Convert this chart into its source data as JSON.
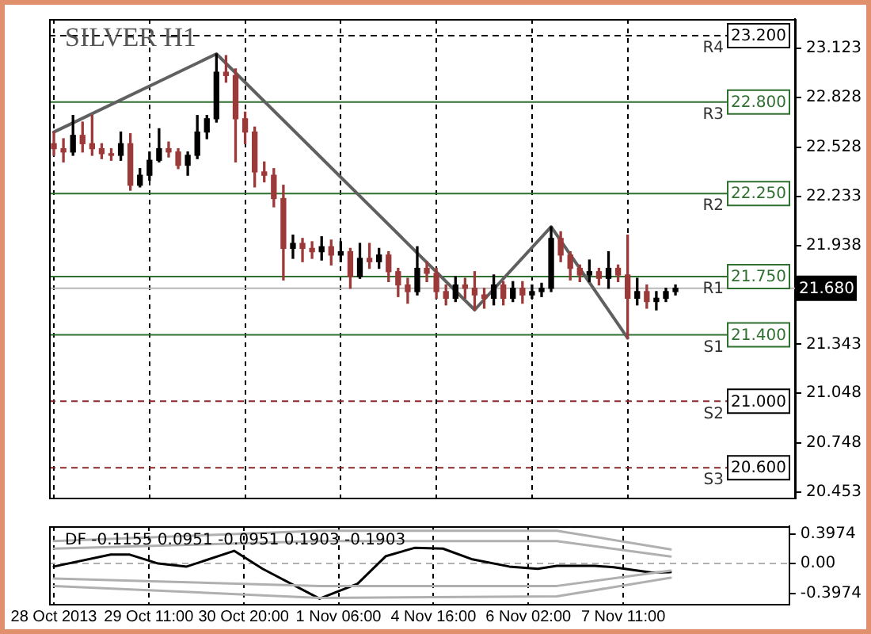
{
  "chart_data": [
    {
      "type": "candlestick",
      "title": "SILVER H1",
      "categories": [
        null,
        null,
        null,
        null,
        null,
        null,
        null,
        null,
        null,
        null,
        null,
        null,
        null,
        null,
        null,
        null,
        null,
        null,
        null,
        null,
        null,
        null,
        null,
        null,
        null,
        null,
        null,
        null,
        null,
        null,
        null,
        null,
        null,
        null,
        null,
        null,
        null,
        null,
        null,
        null,
        null,
        null,
        null,
        null,
        null,
        null,
        null,
        null,
        null,
        null,
        null,
        null,
        null,
        null,
        null,
        null,
        null,
        null,
        null,
        null,
        null,
        null,
        null,
        null,
        null,
        null,
        null,
        null,
        null,
        null,
        null,
        null,
        null,
        null,
        null,
        null,
        null,
        null
      ],
      "ohlc": [
        [
          22.55,
          22.62,
          22.48,
          22.52
        ],
        [
          22.52,
          22.58,
          22.44,
          22.5
        ],
        [
          22.5,
          22.72,
          22.48,
          22.6
        ],
        [
          22.6,
          22.68,
          22.5,
          22.55
        ],
        [
          22.55,
          22.72,
          22.48,
          22.52
        ],
        [
          22.52,
          22.55,
          22.46,
          22.49
        ],
        [
          22.49,
          22.52,
          22.45,
          22.48
        ],
        [
          22.48,
          22.62,
          22.45,
          22.55
        ],
        [
          22.55,
          22.61,
          22.27,
          22.3
        ],
        [
          22.3,
          22.4,
          22.29,
          22.36
        ],
        [
          22.36,
          22.5,
          22.33,
          22.45
        ],
        [
          22.45,
          22.64,
          22.44,
          22.52
        ],
        [
          22.52,
          22.56,
          22.47,
          22.5
        ],
        [
          22.5,
          22.52,
          22.4,
          22.42
        ],
        [
          22.42,
          22.5,
          22.36,
          22.48
        ],
        [
          22.48,
          22.72,
          22.46,
          22.62
        ],
        [
          22.62,
          22.72,
          22.58,
          22.7
        ],
        [
          22.7,
          23.09,
          22.68,
          22.98
        ],
        [
          22.98,
          23.08,
          22.92,
          22.96
        ],
        [
          22.96,
          23.0,
          22.44,
          22.7
        ],
        [
          22.7,
          22.74,
          22.55,
          22.62
        ],
        [
          22.62,
          22.65,
          22.29,
          22.38
        ],
        [
          22.38,
          22.44,
          22.32,
          22.36
        ],
        [
          22.36,
          22.4,
          22.17,
          22.22
        ],
        [
          22.22,
          22.3,
          21.73,
          21.92
        ],
        [
          21.92,
          22.0,
          21.86,
          21.95
        ],
        [
          21.95,
          21.98,
          21.84,
          21.92
        ],
        [
          21.92,
          21.96,
          21.86,
          21.9
        ],
        [
          21.9,
          21.99,
          21.85,
          21.93
        ],
        [
          21.93,
          21.97,
          21.82,
          21.88
        ],
        [
          21.88,
          21.96,
          21.84,
          21.9
        ],
        [
          21.9,
          21.92,
          21.68,
          21.75
        ],
        [
          21.75,
          21.95,
          21.74,
          21.86
        ],
        [
          21.86,
          21.95,
          21.8,
          21.84
        ],
        [
          21.84,
          21.92,
          21.8,
          21.88
        ],
        [
          21.88,
          21.9,
          21.72,
          21.78
        ],
        [
          21.78,
          21.8,
          21.63,
          21.7
        ],
        [
          21.7,
          21.74,
          21.59,
          21.66
        ],
        [
          21.66,
          21.93,
          21.64,
          21.8
        ],
        [
          21.8,
          21.84,
          21.72,
          21.77
        ],
        [
          21.77,
          21.8,
          21.62,
          21.66
        ],
        [
          21.66,
          21.7,
          21.58,
          21.62
        ],
        [
          21.62,
          21.75,
          21.6,
          21.7
        ],
        [
          21.7,
          21.74,
          21.62,
          21.68
        ],
        [
          21.68,
          21.78,
          21.55,
          21.64
        ],
        [
          21.64,
          21.68,
          21.56,
          21.62
        ],
        [
          21.62,
          21.76,
          21.58,
          21.7
        ],
        [
          21.7,
          21.72,
          21.58,
          21.62
        ],
        [
          21.62,
          21.72,
          21.6,
          21.68
        ],
        [
          21.68,
          21.72,
          21.59,
          21.64
        ],
        [
          21.64,
          21.7,
          21.62,
          21.66
        ],
        [
          21.66,
          21.71,
          21.63,
          21.68
        ],
        [
          21.68,
          22.05,
          21.66,
          21.98
        ],
        [
          21.98,
          22.02,
          21.84,
          21.88
        ],
        [
          21.88,
          21.9,
          21.73,
          21.8
        ],
        [
          21.8,
          21.82,
          21.72,
          21.76
        ],
        [
          21.76,
          21.85,
          21.72,
          21.78
        ],
        [
          21.78,
          21.8,
          21.7,
          21.74
        ],
        [
          21.74,
          21.9,
          21.68,
          21.8
        ],
        [
          21.8,
          21.82,
          21.72,
          21.76
        ],
        [
          21.76,
          22.0,
          21.38,
          21.62
        ],
        [
          21.62,
          21.74,
          21.58,
          21.66
        ],
        [
          21.66,
          21.7,
          21.56,
          21.6
        ],
        [
          21.6,
          21.66,
          21.55,
          21.62
        ],
        [
          21.62,
          21.68,
          21.6,
          21.66
        ],
        [
          21.66,
          21.7,
          21.64,
          21.68
        ],
        null,
        null,
        null,
        null,
        null,
        null,
        null,
        null,
        null,
        null,
        null,
        null
      ],
      "series": [
        {
          "type": "line",
          "color": "#606060",
          "values": [
            22.62,
            null,
            null,
            null,
            null,
            null,
            null,
            null,
            null,
            null,
            null,
            null,
            null,
            null,
            null,
            null,
            null,
            23.09,
            null,
            null,
            null,
            null,
            null,
            null,
            null,
            null,
            null,
            null,
            null,
            null,
            null,
            null,
            null,
            null,
            null,
            null,
            null,
            null,
            null,
            null,
            null,
            null,
            null,
            null,
            21.55,
            null,
            null,
            null,
            null,
            null,
            null,
            null,
            22.05,
            null,
            null,
            null,
            null,
            null,
            null,
            null,
            21.38,
            null,
            null,
            null,
            null,
            null,
            null,
            null,
            null,
            null,
            null,
            null,
            null,
            null,
            null,
            null,
            null,
            null
          ]
        }
      ],
      "ylim": [
        20.42,
        23.3
      ],
      "yticks": [
        23.123,
        22.828,
        22.528,
        22.233,
        21.938,
        21.343,
        21.048,
        20.748,
        20.453
      ],
      "grid": "x",
      "tick_labels": "y",
      "ref_lines": [
        {
          "axis": "y",
          "value": 23.2,
          "label": "23.200",
          "color": "#000000",
          "line_style": "dashed"
        },
        {
          "axis": "y",
          "value": 22.8,
          "label": "22.800",
          "color": "#2f6f2f",
          "line_style": "solid"
        },
        {
          "axis": "y",
          "value": 22.25,
          "label": "22.250",
          "color": "#2f6f2f",
          "line_style": "solid"
        },
        {
          "axis": "y",
          "value": 21.75,
          "label": "21.750",
          "color": "#2f6f2f",
          "line_style": "solid"
        },
        {
          "axis": "y",
          "value": 21.4,
          "label": "21.400",
          "color": "#2f6f2f",
          "line_style": "solid"
        },
        {
          "axis": "y",
          "value": 21.0,
          "label": "21.000",
          "color": "#8b2a2a",
          "line_style": "dashed"
        },
        {
          "axis": "y",
          "value": 20.6,
          "label": "20.600",
          "color": "#8b2a2a",
          "line_style": "dashed"
        },
        {
          "axis": "y",
          "value": 21.68,
          "label": "21.680",
          "color": "#b8b8b8",
          "line_style": "solid"
        }
      ],
      "annotations": [
        {
          "text": "R4",
          "y": 23.2
        },
        {
          "text": "R3",
          "y": 22.8
        },
        {
          "text": "R2",
          "y": 22.25
        },
        {
          "text": "R1",
          "y": 21.75
        },
        {
          "text": "S1",
          "y": 21.4
        },
        {
          "text": "S2",
          "y": 21.0
        },
        {
          "text": "S3",
          "y": 20.6
        }
      ]
    },
    {
      "type": "line",
      "title": "DF -0.1155 0.0951 -0.0951 0.1903 -0.1903",
      "categories": [
        "28 Oct 2013",
        null,
        null,
        null,
        null,
        null,
        null,
        null,
        null,
        null,
        "29 Oct 11:00",
        null,
        null,
        null,
        null,
        null,
        null,
        null,
        null,
        null,
        "30 Oct 20:00",
        null,
        null,
        null,
        null,
        null,
        null,
        null,
        null,
        null,
        "1 Nov 06:00",
        null,
        null,
        null,
        null,
        null,
        null,
        null,
        null,
        null,
        "4 Nov 16:00",
        null,
        null,
        null,
        null,
        null,
        null,
        null,
        null,
        null,
        "6 Nov 02:00",
        null,
        null,
        null,
        null,
        null,
        null,
        null,
        null,
        null,
        "7 Nov 11:00",
        null,
        null,
        null,
        null,
        null,
        null,
        null,
        null,
        null,
        null,
        null,
        null,
        null,
        null,
        null,
        null,
        null
      ],
      "series": [
        {
          "color": "#b0b0b0",
          "values": [
            0.3,
            null,
            null,
            null,
            null,
            null,
            null,
            null,
            null,
            null,
            null,
            null,
            null,
            null,
            null,
            null,
            null,
            null,
            null,
            null,
            null,
            null,
            null,
            null,
            null,
            null,
            null,
            null,
            0.44,
            null,
            null,
            null,
            null,
            null,
            null,
            null,
            null,
            null,
            null,
            null,
            null,
            null,
            null,
            null,
            null,
            null,
            null,
            null,
            null,
            null,
            null,
            null,
            null,
            0.44,
            null,
            null,
            null,
            null,
            null,
            null,
            null,
            null,
            null,
            null,
            null,
            0.1903,
            null,
            null,
            null,
            null,
            null,
            null,
            null,
            null,
            null,
            null,
            null,
            null
          ]
        },
        {
          "color": "#b0b0b0",
          "values": [
            0.2,
            null,
            null,
            null,
            null,
            null,
            null,
            null,
            null,
            null,
            null,
            null,
            null,
            null,
            null,
            null,
            null,
            null,
            null,
            null,
            null,
            null,
            null,
            null,
            null,
            null,
            null,
            null,
            0.3,
            null,
            null,
            null,
            null,
            null,
            null,
            null,
            null,
            null,
            null,
            null,
            null,
            null,
            null,
            null,
            null,
            null,
            null,
            null,
            null,
            null,
            null,
            null,
            null,
            0.3,
            null,
            null,
            null,
            null,
            null,
            null,
            null,
            null,
            null,
            null,
            null,
            0.0951,
            null,
            null,
            null,
            null,
            null,
            null,
            null,
            null,
            null,
            null,
            null,
            null
          ]
        },
        {
          "color": "#b0b0b0",
          "values": [
            -0.2,
            null,
            null,
            null,
            null,
            null,
            null,
            null,
            null,
            null,
            null,
            null,
            null,
            null,
            null,
            null,
            null,
            null,
            null,
            null,
            null,
            null,
            null,
            null,
            null,
            null,
            null,
            null,
            -0.3,
            null,
            null,
            null,
            null,
            null,
            null,
            null,
            null,
            null,
            null,
            null,
            null,
            null,
            null,
            null,
            null,
            null,
            null,
            null,
            null,
            null,
            null,
            null,
            null,
            -0.3,
            null,
            null,
            null,
            null,
            null,
            null,
            null,
            null,
            null,
            null,
            null,
            -0.0951,
            null,
            null,
            null,
            null,
            null,
            null,
            null,
            null,
            null,
            null,
            null,
            null
          ]
        },
        {
          "color": "#b0b0b0",
          "values": [
            -0.3,
            null,
            null,
            null,
            null,
            null,
            null,
            null,
            null,
            null,
            null,
            null,
            null,
            null,
            null,
            null,
            null,
            null,
            null,
            null,
            null,
            null,
            null,
            null,
            null,
            null,
            null,
            null,
            -0.46,
            null,
            null,
            null,
            null,
            null,
            null,
            null,
            null,
            null,
            null,
            null,
            null,
            null,
            null,
            null,
            null,
            null,
            null,
            null,
            null,
            null,
            null,
            null,
            null,
            -0.44,
            null,
            null,
            null,
            null,
            null,
            null,
            null,
            null,
            null,
            null,
            null,
            -0.1903,
            null,
            null,
            null,
            null,
            null,
            null,
            null,
            null,
            null,
            null,
            null,
            null
          ]
        },
        {
          "color": "#000000",
          "values": [
            -0.04,
            null,
            null,
            null,
            null,
            null,
            0.12,
            null,
            0.12,
            null,
            null,
            0.0,
            null,
            null,
            -0.04,
            null,
            null,
            null,
            null,
            0.17,
            null,
            null,
            -0.07,
            null,
            null,
            null,
            null,
            null,
            -0.47,
            null,
            null,
            null,
            -0.27,
            null,
            null,
            0.1,
            null,
            null,
            0.21,
            null,
            null,
            0.2,
            null,
            null,
            0.06,
            null,
            null,
            null,
            -0.04,
            null,
            null,
            -0.07,
            null,
            -0.03,
            null,
            null,
            null,
            -0.03,
            null,
            -0.05,
            null,
            null,
            null,
            -0.12,
            null,
            -0.1155,
            null,
            null,
            null,
            null,
            null,
            null,
            null,
            null,
            null,
            null,
            null,
            null
          ]
        }
      ],
      "ylim": [
        -0.54,
        0.5
      ],
      "yticks": [
        0.3974,
        {
          "value": 0,
          "label": "0.00"
        },
        -0.3974
      ],
      "grid": "x",
      "ref_lines": [
        {
          "axis": "y",
          "value": 0,
          "color": "#b0b0b0",
          "line_style": "dashed"
        }
      ]
    }
  ]
}
